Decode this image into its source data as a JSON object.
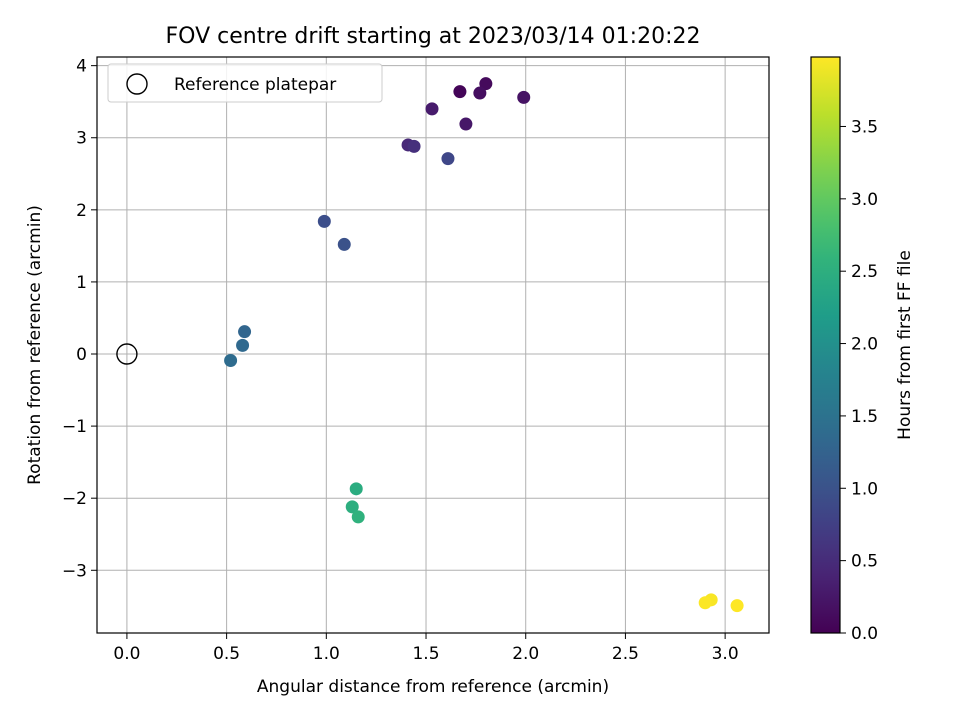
{
  "chart_data": {
    "type": "scatter",
    "title": "FOV centre drift starting at 2023/03/14 01:20:22",
    "xlabel": "Angular distance from reference (arcmin)",
    "ylabel": "Rotation from reference (arcmin)",
    "xlim": [
      -0.15,
      3.22
    ],
    "ylim": [
      -3.87,
      4.12
    ],
    "xticks": [
      0.0,
      0.5,
      1.0,
      1.5,
      2.0,
      2.5,
      3.0
    ],
    "xtick_labels": [
      "0.0",
      "0.5",
      "1.0",
      "1.5",
      "2.0",
      "2.5",
      "3.0"
    ],
    "yticks": [
      -3,
      -2,
      -1,
      0,
      1,
      2,
      3,
      4
    ],
    "ytick_labels": [
      "−3",
      "−2",
      "−1",
      "0",
      "1",
      "2",
      "3",
      "4"
    ],
    "grid": true,
    "legend": {
      "location": "upper left",
      "entries": [
        {
          "label": "Reference platepar",
          "marker": "open-circle"
        }
      ]
    },
    "reference_point": {
      "x": 0.0,
      "y": 0.0
    },
    "colorbar": {
      "label": "Hours from first FF file",
      "colormap": "viridis",
      "range": [
        0.0,
        3.98
      ],
      "ticks": [
        0.0,
        0.5,
        1.0,
        1.5,
        2.0,
        2.5,
        3.0,
        3.5
      ],
      "tick_labels": [
        "0.0",
        "0.5",
        "1.0",
        "1.5",
        "2.0",
        "2.5",
        "3.0",
        "3.5"
      ]
    },
    "points": [
      {
        "x": 1.67,
        "y": 3.64,
        "c": 0.05
      },
      {
        "x": 1.8,
        "y": 3.75,
        "c": 0.1
      },
      {
        "x": 1.77,
        "y": 3.62,
        "c": 0.15
      },
      {
        "x": 1.99,
        "y": 3.56,
        "c": 0.2
      },
      {
        "x": 1.7,
        "y": 3.19,
        "c": 0.25
      },
      {
        "x": 1.53,
        "y": 3.4,
        "c": 0.3
      },
      {
        "x": 1.41,
        "y": 2.9,
        "c": 0.45
      },
      {
        "x": 1.44,
        "y": 2.88,
        "c": 0.55
      },
      {
        "x": 1.61,
        "y": 2.71,
        "c": 0.85
      },
      {
        "x": 0.99,
        "y": 1.84,
        "c": 0.95
      },
      {
        "x": 1.09,
        "y": 1.52,
        "c": 1.0
      },
      {
        "x": 0.59,
        "y": 0.31,
        "c": 1.3
      },
      {
        "x": 0.58,
        "y": 0.12,
        "c": 1.35
      },
      {
        "x": 0.52,
        "y": -0.09,
        "c": 1.4
      },
      {
        "x": 1.15,
        "y": -1.87,
        "c": 2.45
      },
      {
        "x": 1.13,
        "y": -2.12,
        "c": 2.5
      },
      {
        "x": 1.16,
        "y": -2.26,
        "c": 2.55
      },
      {
        "x": 2.93,
        "y": -3.41,
        "c": 3.95
      },
      {
        "x": 2.9,
        "y": -3.45,
        "c": 3.97
      },
      {
        "x": 3.06,
        "y": -3.49,
        "c": 3.98
      }
    ]
  }
}
